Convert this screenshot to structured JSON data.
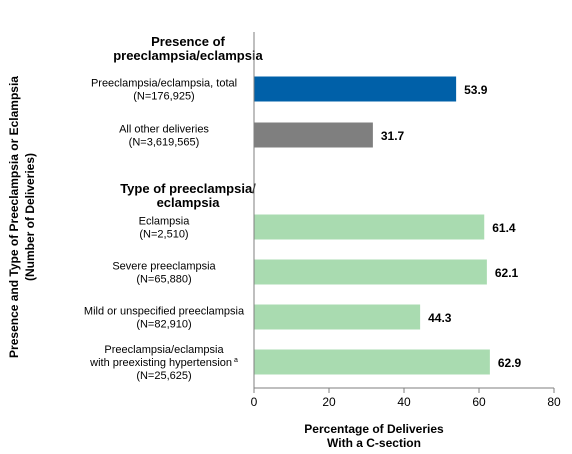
{
  "chart_data": {
    "type": "bar",
    "orientation": "horizontal",
    "ylabel_lines": [
      "Presence and Type of Preeclampsia or Eclampsia",
      "(Number of Deliveries)"
    ],
    "xlabel_lines": [
      "Percentage of Deliveries",
      "With a C-section"
    ],
    "xlim": [
      0,
      80
    ],
    "xticks": [
      0,
      20,
      40,
      60,
      80
    ],
    "grid": false,
    "legend": "none",
    "groups": [
      {
        "heading_lines": [
          "Presence of",
          "preeclampsia/eclampsia"
        ],
        "bars": [
          {
            "label_lines": [
              "Preeclampsia/eclampsia, total",
              "(N=176,925)"
            ],
            "value": 53.9,
            "value_label": "53.9",
            "color": "#0060a8"
          },
          {
            "label_lines": [
              "All other deliveries",
              "(N=3,619,565)"
            ],
            "value": 31.7,
            "value_label": "31.7",
            "color": "#7f7f7f"
          }
        ]
      },
      {
        "heading_lines": [
          "Type of preeclampsia/",
          "eclampsia"
        ],
        "bars": [
          {
            "label_lines": [
              "Eclampsia",
              "(N=2,510)"
            ],
            "value": 61.4,
            "value_label": "61.4",
            "color": "#a9dbb0"
          },
          {
            "label_lines": [
              "Severe preeclampsia",
              "(N=65,880)"
            ],
            "value": 62.1,
            "value_label": "62.1",
            "color": "#a9dbb0"
          },
          {
            "label_lines": [
              "Mild or unspecified preeclampsia",
              "(N=82,910)"
            ],
            "value": 44.3,
            "value_label": "44.3",
            "color": "#a9dbb0"
          },
          {
            "label_lines": [
              "Preeclampsia/eclampsia",
              "with preexisting hypertension",
              "(N=25,625)"
            ],
            "label_superscript": "a",
            "value": 62.9,
            "value_label": "62.9",
            "color": "#a9dbb0"
          }
        ]
      }
    ]
  }
}
